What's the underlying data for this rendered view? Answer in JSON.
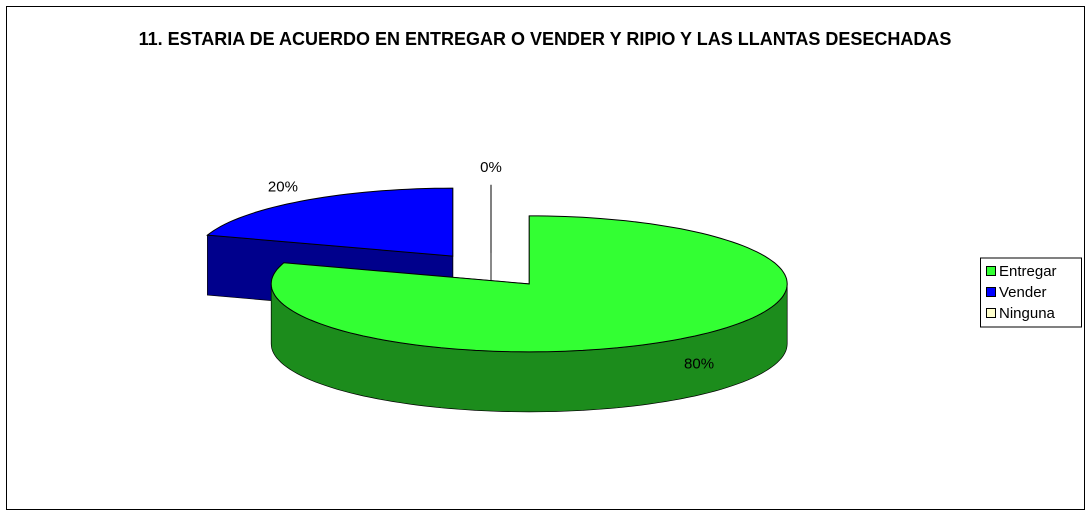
{
  "chart_data": {
    "type": "pie",
    "title": "11. ESTARIA DE ACUERDO EN ENTREGAR O VENDER Y RIPIO Y LAS LLANTAS DESECHADAS",
    "categories": [
      "Entregar",
      "Vender",
      "Ninguna"
    ],
    "values": [
      80,
      20,
      0
    ],
    "value_labels": [
      "80%",
      "20%",
      "0%"
    ],
    "colors": [
      "#33ff33",
      "#0000ff",
      "#ffffcc"
    ],
    "legend": "right"
  }
}
